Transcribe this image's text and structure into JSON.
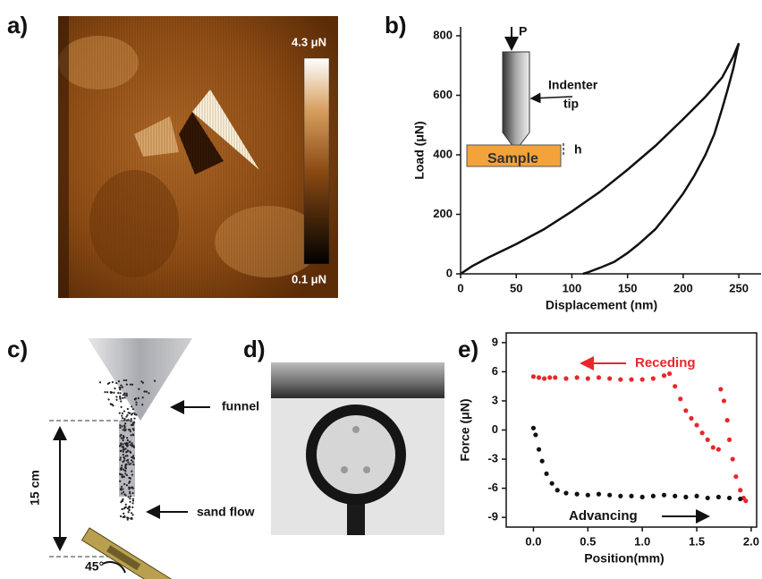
{
  "panels": {
    "a": {
      "label": "a)",
      "colorbar_max": "4.3 μN",
      "colorbar_min": "0.1 μN"
    },
    "c": {
      "label": "c)",
      "funnel": "funnel",
      "height": "15 cm",
      "flow": "sand flow",
      "angle": "45°"
    },
    "d": {
      "label": "d)"
    }
  },
  "chart_data": [
    {
      "type": "line",
      "panel_label": "b)",
      "x_label": "Displacement (nm)",
      "y_label": "Load (μN)",
      "x": [
        0,
        10,
        25,
        50,
        75,
        100,
        125,
        150,
        175,
        200,
        220,
        235,
        245,
        250,
        249,
        245,
        240,
        235,
        228,
        220,
        210,
        200,
        188,
        175,
        160,
        150,
        138,
        125,
        115,
        110
      ],
      "values": [
        0,
        25,
        55,
        100,
        150,
        210,
        275,
        350,
        430,
        520,
        595,
        660,
        730,
        775,
        760,
        690,
        620,
        555,
        470,
        400,
        330,
        270,
        210,
        150,
        100,
        70,
        40,
        20,
        6,
        0
      ],
      "color": "#111111",
      "xlim": [
        0,
        270
      ],
      "ylim": [
        0,
        830
      ],
      "xticks": [
        0,
        50,
        100,
        150,
        200,
        250
      ],
      "yticks": [
        0,
        200,
        400,
        600,
        800
      ],
      "annotations": [
        "P",
        "Indenter",
        "tip",
        "Sample",
        "h"
      ]
    },
    {
      "type": "scatter",
      "panel_label": "e)",
      "x_label": "Position(mm)",
      "y_label": "Force (μN)",
      "xlim": [
        -0.25,
        2.05
      ],
      "ylim": [
        -10,
        10
      ],
      "xticks": [
        {
          "value": 0,
          "label": "0.0"
        },
        {
          "value": 0.5,
          "label": "0.5"
        },
        {
          "value": 1,
          "label": "1.0"
        },
        {
          "value": 1.5,
          "label": "1.5"
        },
        {
          "value": 2,
          "label": "2.0"
        }
      ],
      "yticks": [
        9,
        6,
        3,
        0,
        -3,
        -6,
        -9
      ],
      "series": [
        {
          "name": "Receding",
          "color": "#e8262b",
          "x": [
            0,
            0.05,
            0.1,
            0.15,
            0.2,
            0.3,
            0.4,
            0.5,
            0.6,
            0.7,
            0.8,
            0.9,
            1.0,
            1.1,
            1.2,
            1.25,
            1.3,
            1.35,
            1.4,
            1.45,
            1.5,
            1.55,
            1.6,
            1.65,
            1.7,
            1.72,
            1.75,
            1.78,
            1.8,
            1.83,
            1.86,
            1.9,
            1.93,
            1.95
          ],
          "values": [
            5.5,
            5.4,
            5.3,
            5.4,
            5.4,
            5.3,
            5.4,
            5.3,
            5.4,
            5.3,
            5.2,
            5.2,
            5.2,
            5.3,
            5.6,
            5.8,
            4.5,
            3.2,
            2.0,
            1.2,
            0.5,
            -0.3,
            -1.0,
            -1.8,
            -2.0,
            4.2,
            3.0,
            1.0,
            -1.0,
            -3.0,
            -4.8,
            -6.2,
            -7.0,
            -7.3
          ]
        },
        {
          "name": "Advancing",
          "color": "#111111",
          "x": [
            0,
            0.02,
            0.05,
            0.08,
            0.12,
            0.17,
            0.22,
            0.3,
            0.4,
            0.5,
            0.6,
            0.7,
            0.8,
            0.9,
            1.0,
            1.1,
            1.2,
            1.3,
            1.4,
            1.5,
            1.6,
            1.7,
            1.8,
            1.9
          ],
          "values": [
            0.2,
            -0.5,
            -2.0,
            -3.2,
            -4.5,
            -5.5,
            -6.2,
            -6.5,
            -6.6,
            -6.7,
            -6.6,
            -6.7,
            -6.8,
            -6.8,
            -6.9,
            -6.8,
            -6.7,
            -6.8,
            -6.9,
            -6.8,
            -7.0,
            -6.9,
            -7.0,
            -7.1
          ]
        }
      ]
    }
  ]
}
